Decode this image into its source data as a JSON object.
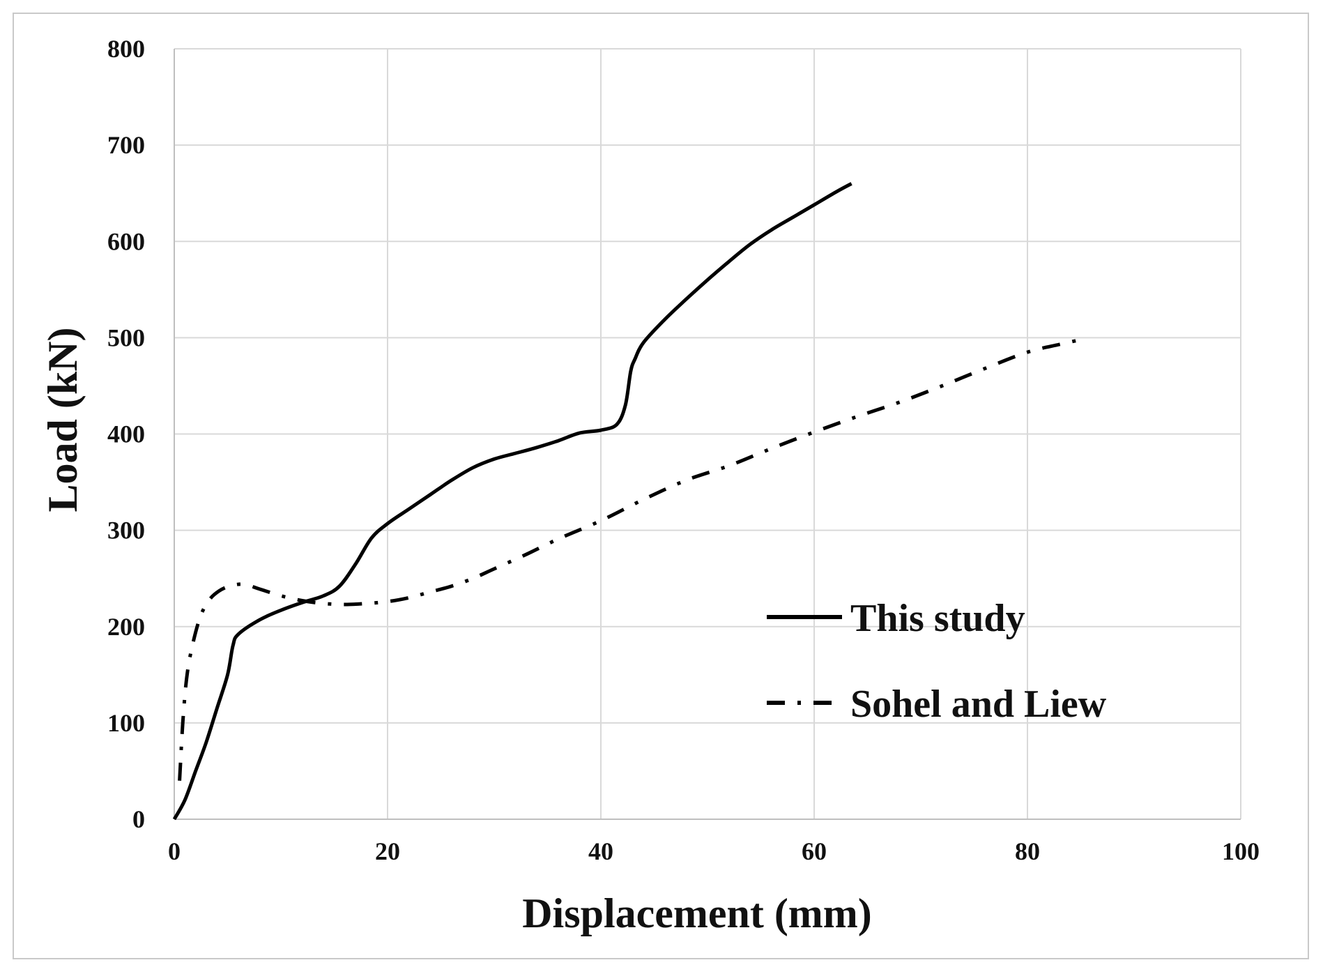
{
  "chart_data": {
    "type": "line",
    "title": "",
    "xlabel": "Displacement (mm)",
    "ylabel": "Load (kN)",
    "xlim": [
      0,
      100
    ],
    "ylim": [
      0,
      800
    ],
    "xticks": [
      0,
      20,
      40,
      60,
      80,
      100
    ],
    "yticks": [
      0,
      100,
      200,
      300,
      400,
      500,
      600,
      700,
      800
    ],
    "x_tick_labels": [
      "0",
      "20",
      "40",
      "60",
      "80",
      "100"
    ],
    "y_tick_labels": [
      "0",
      "100",
      "200",
      "300",
      "400",
      "500",
      "600",
      "700",
      "800"
    ],
    "grid": true,
    "legend_position": "center-right",
    "series": [
      {
        "name": "This study",
        "style": "solid",
        "color": "#000000",
        "x": [
          0,
          1,
          2,
          3,
          4,
          5,
          5.5,
          6,
          8,
          10,
          12,
          14,
          15.5,
          17,
          18.5,
          20,
          22,
          24,
          26,
          28,
          30,
          32,
          34,
          36,
          38,
          40,
          41.5,
          42.3,
          42.8,
          43.2,
          44,
          46,
          48,
          50,
          52,
          54,
          56,
          58,
          60,
          62,
          63.5
        ],
        "y": [
          0,
          20,
          50,
          80,
          115,
          150,
          180,
          192,
          207,
          217,
          225,
          232,
          242,
          265,
          292,
          307,
          322,
          337,
          352,
          365,
          374,
          380,
          386,
          393,
          401,
          404,
          410,
          430,
          465,
          478,
          495,
          519,
          540,
          560,
          579,
          597,
          612,
          625,
          638,
          651,
          660
        ]
      },
      {
        "name": "Sohel and Liew",
        "style": "dash-dot",
        "color": "#000000",
        "x": [
          0.5,
          0.8,
          1.2,
          1.8,
          2.5,
          3.3,
          4.2,
          5.2,
          6.5,
          8,
          10,
          12,
          14,
          16,
          18,
          20,
          22,
          24,
          26,
          28,
          30,
          33,
          36,
          40,
          44,
          48,
          52,
          56,
          60,
          64,
          68,
          72,
          76,
          80,
          83,
          85
        ],
        "y": [
          40,
          100,
          150,
          185,
          212,
          228,
          237,
          242,
          244,
          239,
          232,
          227,
          224,
          223,
          224,
          226,
          230,
          236,
          242,
          250,
          260,
          275,
          291,
          310,
          332,
          352,
          367,
          385,
          402,
          418,
          433,
          450,
          468,
          485,
          493,
          498
        ]
      }
    ]
  }
}
